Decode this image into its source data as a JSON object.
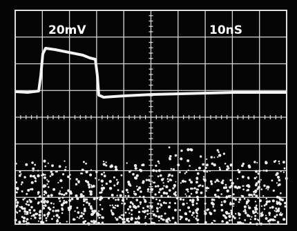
{
  "screen": {
    "volts_per_div": "20mV",
    "time_per_div": "10nS"
  }
}
